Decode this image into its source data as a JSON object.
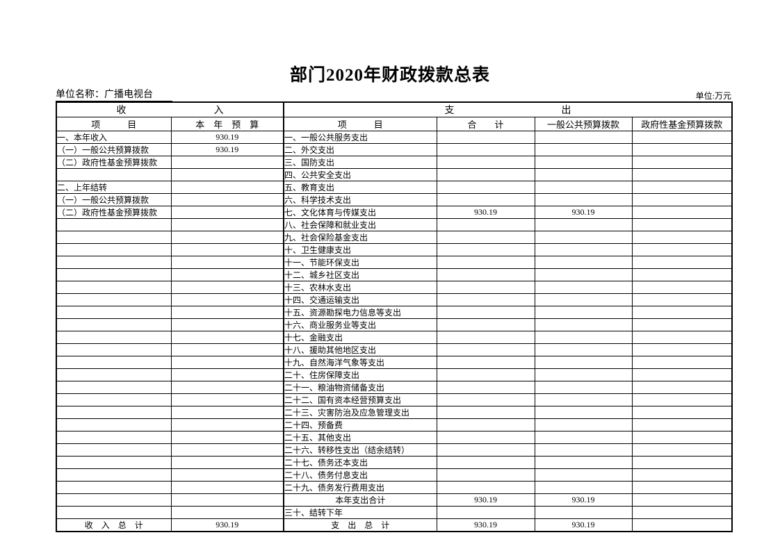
{
  "page": {
    "title": "部门2020年财政拨款总表",
    "unit_name": "单位名称：广播电视台",
    "unit_measure": "单位:万元"
  },
  "table": {
    "section_income": "收　　　　　　　　　入",
    "section_expense": "支　　　　　　　　　　　出",
    "columns": {
      "income_item": "项　　　目",
      "income_budget": "本　年　预　算",
      "expense_item": "项　　　目",
      "expense_total": "合　　计",
      "expense_general": "一般公共预算拨款",
      "expense_fund": "政府性基金预算拨款"
    },
    "rows": [
      {
        "income_item": "一、本年收入",
        "income_budget": "930.19",
        "expense_item": "一、一般公共服务支出"
      },
      {
        "income_item": "（一）一般公共预算拨款",
        "income_budget": "930.19",
        "expense_item": "二、外交支出"
      },
      {
        "income_item": "（二）政府性基金预算拨款",
        "expense_item": "三、国防支出"
      },
      {
        "expense_item": "四、公共安全支出"
      },
      {
        "income_item": "二、上年结转",
        "expense_item": "五、教育支出"
      },
      {
        "income_item": "（一）一般公共预算拨款",
        "expense_item": "六、科学技术支出"
      },
      {
        "income_item": "（二）政府性基金预算拨款",
        "expense_item": "七、文化体育与传媒支出",
        "expense_total": "930.19",
        "expense_general": "930.19"
      },
      {
        "expense_item": "八、社会保障和就业支出"
      },
      {
        "expense_item": "九、社会保险基金支出"
      },
      {
        "expense_item": "十、卫生健康支出"
      },
      {
        "expense_item": "十一、节能环保支出"
      },
      {
        "expense_item": "十二、城乡社区支出"
      },
      {
        "expense_item": "十三、农林水支出"
      },
      {
        "expense_item": "十四、交通运输支出"
      },
      {
        "expense_item": "十五、资源勘探电力信息等支出"
      },
      {
        "expense_item": "十六、商业服务业等支出"
      },
      {
        "expense_item": "十七、金融支出"
      },
      {
        "expense_item": "十八、援助其他地区支出"
      },
      {
        "expense_item": "十九、自然海洋气象等支出"
      },
      {
        "expense_item": "二十、住房保障支出"
      },
      {
        "expense_item": "二十一、粮油物资储备支出"
      },
      {
        "expense_item": "二十二、国有资本经营预算支出"
      },
      {
        "expense_item": "二十三、灾害防治及应急管理支出"
      },
      {
        "expense_item": "二十四、预备费"
      },
      {
        "expense_item": "二十五、其他支出"
      },
      {
        "expense_item": "二十六、转移性支出（结余结转）"
      },
      {
        "expense_item": "二十七、债务还本支出"
      },
      {
        "expense_item": "二十八、债务付息支出"
      },
      {
        "expense_item": "二十九、债务发行费用支出"
      },
      {
        "expense_item": "本年支出合计",
        "expense_center": true,
        "expense_total": "930.19",
        "expense_general": "930.19"
      },
      {
        "expense_item": "三十、结转下年"
      },
      {
        "income_item": "收　入　总　计",
        "income_center": true,
        "income_budget": "930.19",
        "expense_item": "支　出　总　计",
        "expense_center": true,
        "expense_total": "930.19",
        "expense_general": "930.19"
      }
    ]
  }
}
